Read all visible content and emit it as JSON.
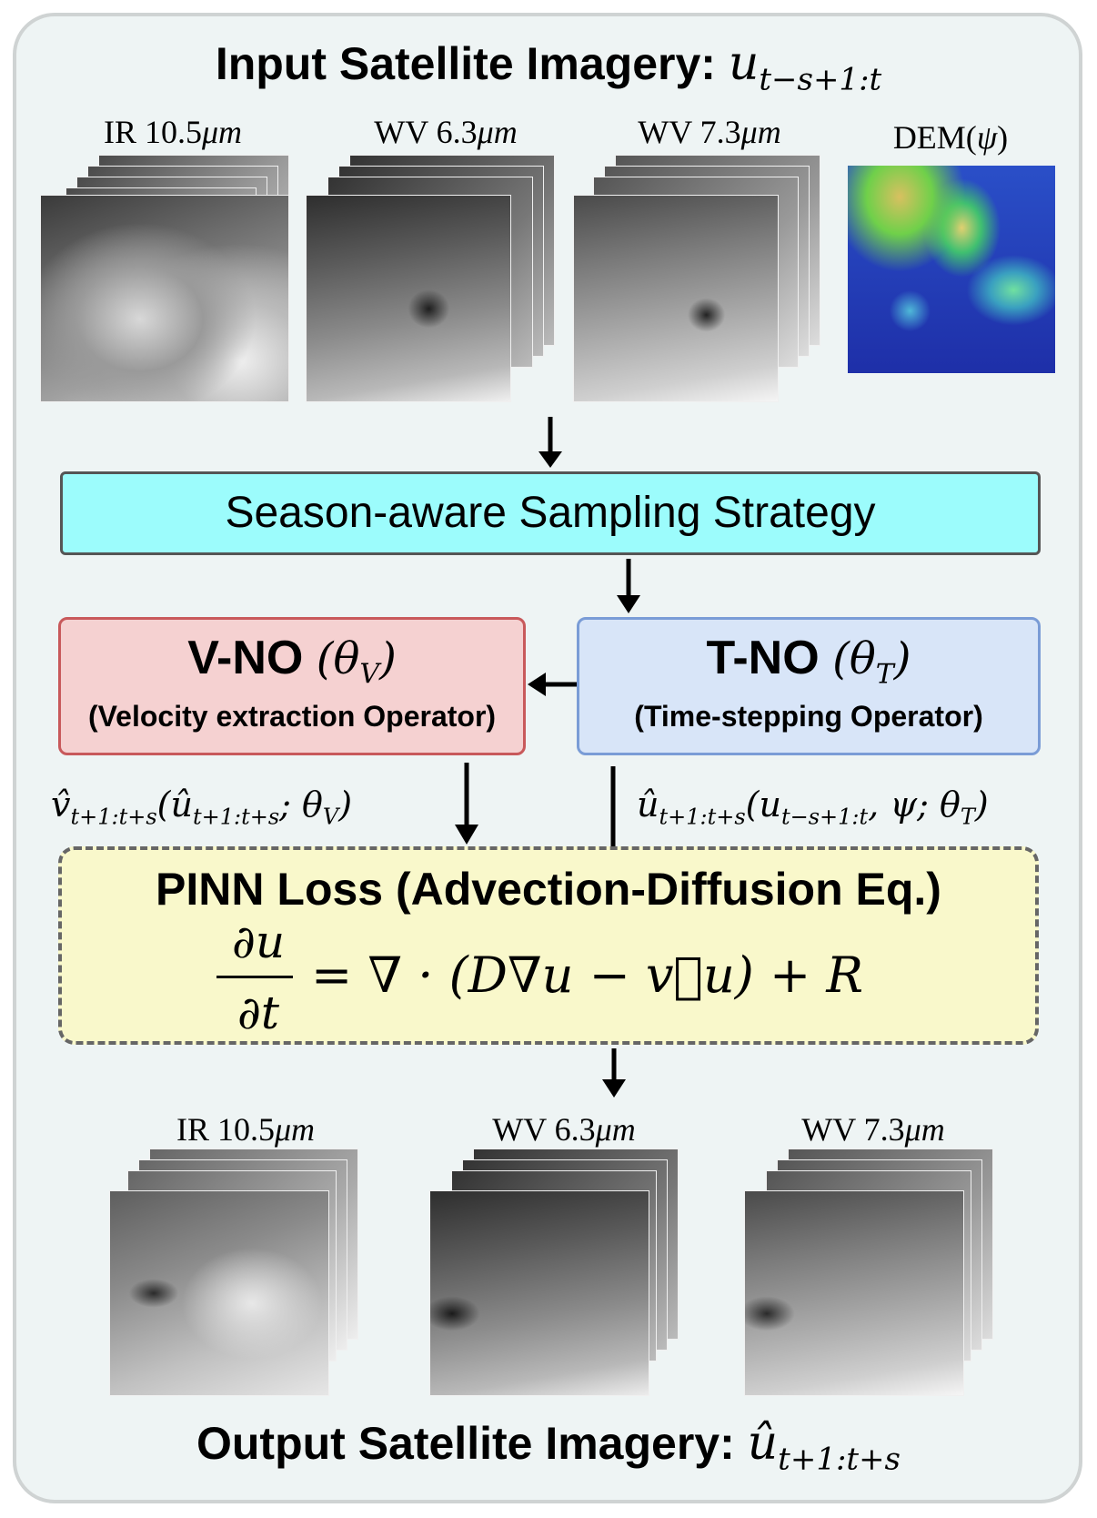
{
  "header": {
    "title_text": "Input Satellite Imagery:",
    "title_math": "u",
    "title_sub": "t−s+1:t"
  },
  "inputs": [
    {
      "label": "IR 10.5",
      "unit": "μm"
    },
    {
      "label": "WV 6.3",
      "unit": "μm"
    },
    {
      "label": "WV 7.3",
      "unit": "μm"
    },
    {
      "label": "DEM(",
      "unit": "ψ",
      "suffix": ")"
    }
  ],
  "sampling": {
    "label": "Season-aware Sampling Strategy"
  },
  "vno": {
    "title": "V-NO",
    "param": "(θ",
    "param_sub": "V",
    "param_end": ")",
    "subtitle": "(Velocity extraction Operator)"
  },
  "tno": {
    "title": "T-NO",
    "param": "(θ",
    "param_sub": "T",
    "param_end": ")",
    "subtitle": "(Time-stepping Operator)"
  },
  "edges": {
    "v_out": "v̂",
    "v_out_sub": "t+1:t+s",
    "v_out_args": "(û",
    "v_out_args_sub": "t+1:t+s",
    "v_out_tail": "; θ",
    "v_out_tail_sub": "V",
    "v_out_end": ")",
    "t_out": "û",
    "t_out_sub": "t+1:t+s",
    "t_out_args": "(u",
    "t_out_args_sub": "t−s+1:t",
    "t_out_tail": ", ψ; θ",
    "t_out_tail_sub": "T",
    "t_out_end": ")"
  },
  "pinn": {
    "title": "PINN Loss (Advection-Diffusion Eq.)",
    "numerator": "∂u",
    "denominator": "∂t",
    "rhs": "= ∇ · (D∇u − v⃗u) + R"
  },
  "outputs": [
    {
      "label": "IR 10.5",
      "unit": "μm"
    },
    {
      "label": "WV 6.3",
      "unit": "μm"
    },
    {
      "label": "WV 7.3",
      "unit": "μm"
    }
  ],
  "footer": {
    "title_text": "Output Satellite Imagery:",
    "title_math": "û",
    "title_sub": "t+1:t+s"
  }
}
